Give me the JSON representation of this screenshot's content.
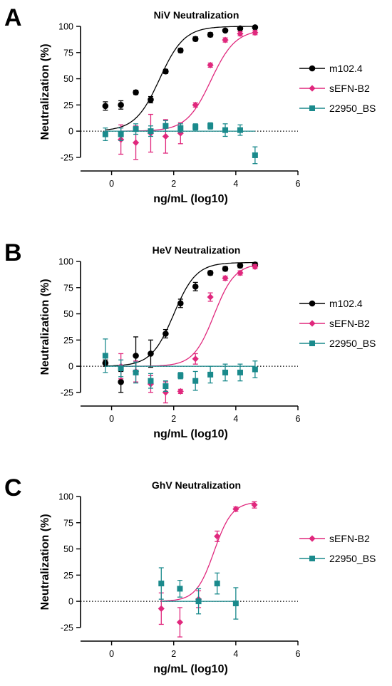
{
  "chart_data": [
    {
      "type": "scatter",
      "panel_label": "A",
      "title": "NiV Neutralization",
      "xlabel": "ng/mL (log10)",
      "ylabel": "Neutralization  (%)",
      "xlim": [
        -1,
        6
      ],
      "ylim": [
        -38,
        100
      ],
      "xticks": [
        0,
        2,
        4,
        6
      ],
      "yticks": [
        -25,
        0,
        25,
        50,
        75,
        100
      ],
      "zero_line": "dotted",
      "legend_position": "right",
      "series": [
        {
          "name": "m102.4",
          "color": "#000000",
          "marker": "circle",
          "x": [
            -0.2,
            0.3,
            0.78,
            1.26,
            1.74,
            2.22,
            2.7,
            3.18,
            3.66,
            4.14,
            4.62
          ],
          "y": [
            24,
            25,
            37,
            30,
            57,
            77,
            88,
            92,
            96,
            98,
            99
          ],
          "err": [
            4,
            4,
            2,
            3,
            2,
            2,
            2,
            2,
            1,
            1,
            1
          ],
          "fit": {
            "bottom": 0,
            "top": 100,
            "ec50_log": 1.55,
            "hill": 1.1
          }
        },
        {
          "name": "sEFN-B2",
          "color": "#e0287d",
          "marker": "diamond",
          "x": [
            0.3,
            0.78,
            1.26,
            1.74,
            2.22,
            2.7,
            3.18,
            3.66,
            4.14,
            4.62
          ],
          "y": [
            -8,
            -11,
            -2,
            -5,
            -2,
            25,
            63,
            87,
            93,
            94
          ],
          "err": [
            14,
            16,
            18,
            16,
            10,
            2,
            2,
            2,
            2,
            2
          ],
          "fit": {
            "bottom": 0,
            "top": 97,
            "ec50_log": 3.2,
            "hill": 1.1
          }
        },
        {
          "name": "22950_BS",
          "color": "#1a8a8c",
          "marker": "square",
          "x": [
            -0.2,
            0.3,
            0.78,
            1.26,
            1.74,
            2.22,
            2.7,
            3.18,
            3.66,
            4.14,
            4.62
          ],
          "y": [
            -3,
            -3,
            2,
            0,
            5,
            3,
            4,
            5,
            1,
            1,
            -23
          ],
          "err": [
            6,
            6,
            5,
            5,
            5,
            4,
            3,
            3,
            6,
            5,
            8
          ],
          "fit": {
            "flat": 0
          }
        }
      ]
    },
    {
      "type": "scatter",
      "panel_label": "B",
      "title": "HeV Neutralization",
      "xlabel": "ng/mL (log10)",
      "ylabel": "Neutralization  (%)",
      "xlim": [
        -1,
        6
      ],
      "ylim": [
        -38,
        100
      ],
      "xticks": [
        0,
        2,
        4,
        6
      ],
      "yticks": [
        -25,
        0,
        25,
        50,
        75,
        100
      ],
      "zero_line": "dotted",
      "legend_position": "right",
      "series": [
        {
          "name": "m102.4",
          "color": "#000000",
          "marker": "circle",
          "x": [
            -0.2,
            0.3,
            0.78,
            1.26,
            1.74,
            2.22,
            2.7,
            3.18,
            3.66,
            4.14,
            4.62
          ],
          "y": [
            3,
            -15,
            10,
            12,
            31,
            60,
            76,
            89,
            93,
            96,
            97
          ],
          "err": [
            3,
            10,
            18,
            13,
            4,
            4,
            4,
            2,
            2,
            2,
            2
          ],
          "fit": {
            "bottom": 0,
            "top": 99,
            "ec50_log": 2.0,
            "hill": 1.2
          }
        },
        {
          "name": "sEFN-B2",
          "color": "#e0287d",
          "marker": "diamond",
          "x": [
            0.3,
            0.78,
            1.26,
            1.74,
            2.22,
            2.7,
            3.18,
            3.66,
            4.14,
            4.62
          ],
          "y": [
            0,
            -5,
            -17,
            -25,
            -24,
            7,
            66,
            84,
            89,
            95
          ],
          "err": [
            12,
            10,
            8,
            10,
            2,
            5,
            4,
            2,
            2,
            2
          ],
          "fit": {
            "bottom": 0,
            "top": 98,
            "ec50_log": 3.3,
            "hill": 1.3
          }
        },
        {
          "name": "22950_BS",
          "color": "#1a8a8c",
          "marker": "square",
          "x": [
            -0.2,
            0.3,
            0.78,
            1.26,
            1.74,
            2.22,
            2.7,
            3.18,
            3.66,
            4.14,
            4.62
          ],
          "y": [
            10,
            -2,
            -6,
            -14,
            -19,
            -9,
            -14,
            -8,
            -6,
            -6,
            -3
          ],
          "err": [
            16,
            8,
            10,
            7,
            5,
            3,
            9,
            8,
            8,
            8,
            8
          ],
          "fit": {
            "flat": 0
          }
        }
      ]
    },
    {
      "type": "scatter",
      "panel_label": "C",
      "title": "GhV Neutralization",
      "xlabel": "ng/mL (log10)",
      "ylabel": "Neutralization  (%)",
      "xlim": [
        -1,
        6
      ],
      "ylim": [
        -38,
        100
      ],
      "xticks": [
        0,
        2,
        4,
        6
      ],
      "yticks": [
        -25,
        0,
        25,
        50,
        75,
        100
      ],
      "zero_line": "dotted",
      "legend_position": "right",
      "series": [
        {
          "name": "sEFN-B2",
          "color": "#e0287d",
          "marker": "diamond",
          "x": [
            1.6,
            2.2,
            2.8,
            3.4,
            4.0,
            4.6
          ],
          "y": [
            -7,
            -20,
            2,
            62,
            88,
            92
          ],
          "err": [
            15,
            14,
            8,
            5,
            2,
            3
          ],
          "fit": {
            "bottom": 0,
            "top": 95,
            "ec50_log": 3.3,
            "hill": 1.5
          }
        },
        {
          "name": "22950_BS",
          "color": "#1a8a8c",
          "marker": "square",
          "x": [
            1.6,
            2.2,
            2.8,
            3.4,
            4.0
          ],
          "y": [
            17,
            12,
            0,
            17,
            -2
          ],
          "err": [
            15,
            8,
            12,
            10,
            15
          ],
          "fit": {
            "flat": 0
          }
        }
      ]
    }
  ]
}
